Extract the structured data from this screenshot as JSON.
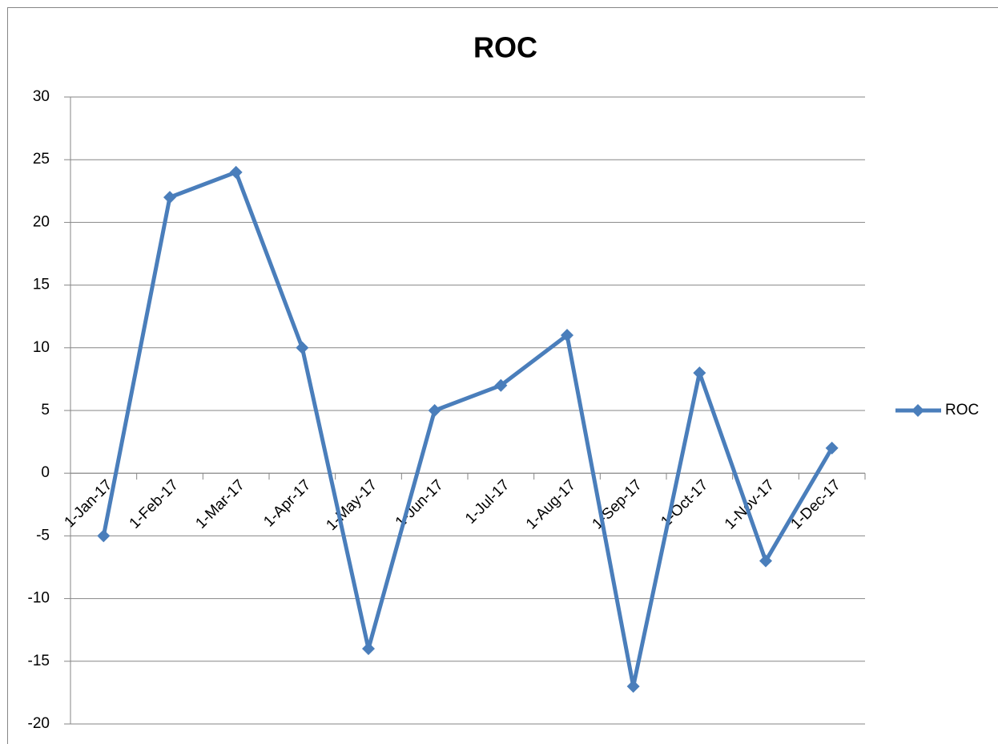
{
  "chart_data": {
    "type": "line",
    "title": "ROC",
    "categories": [
      "1-Jan-17",
      "1-Feb-17",
      "1-Mar-17",
      "1-Apr-17",
      "1-May-17",
      "1-Jun-17",
      "1-Jul-17",
      "1-Aug-17",
      "1-Sep-17",
      "1-Oct-17",
      "1-Nov-17",
      "1-Dec-17"
    ],
    "series": [
      {
        "name": "ROC",
        "color": "#4a7ebb",
        "values": [
          -5,
          22,
          24,
          10,
          -14,
          5,
          7,
          11,
          -17,
          8,
          -7,
          2
        ]
      }
    ],
    "ylim": [
      -20,
      30
    ],
    "yticks": [
      -20,
      -15,
      -10,
      -5,
      0,
      5,
      10,
      15,
      20,
      25,
      30
    ],
    "grid": true,
    "legend": "right"
  }
}
